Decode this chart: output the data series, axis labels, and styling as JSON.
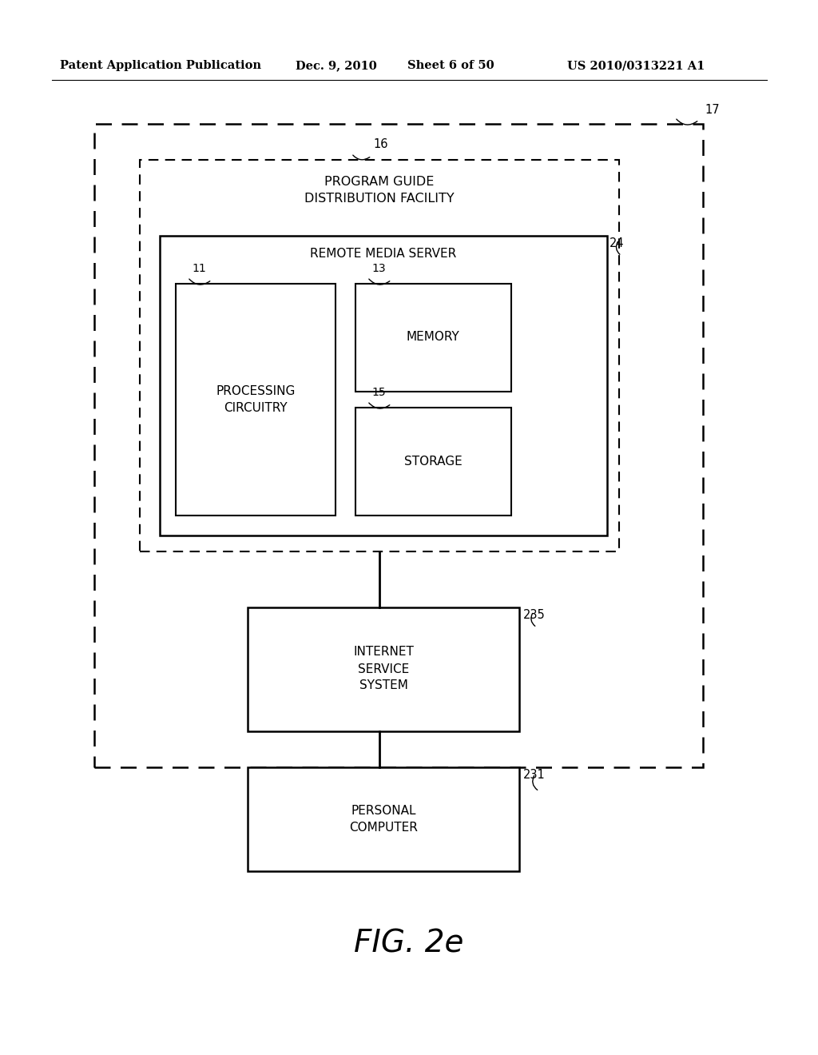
{
  "bg_color": "#ffffff",
  "header_line1": "Patent Application Publication",
  "header_date": "Dec. 9, 2010",
  "header_sheet": "Sheet 6 of 50",
  "header_patent": "US 2010/0313221 A1",
  "fig_label": "FIG. 2e"
}
